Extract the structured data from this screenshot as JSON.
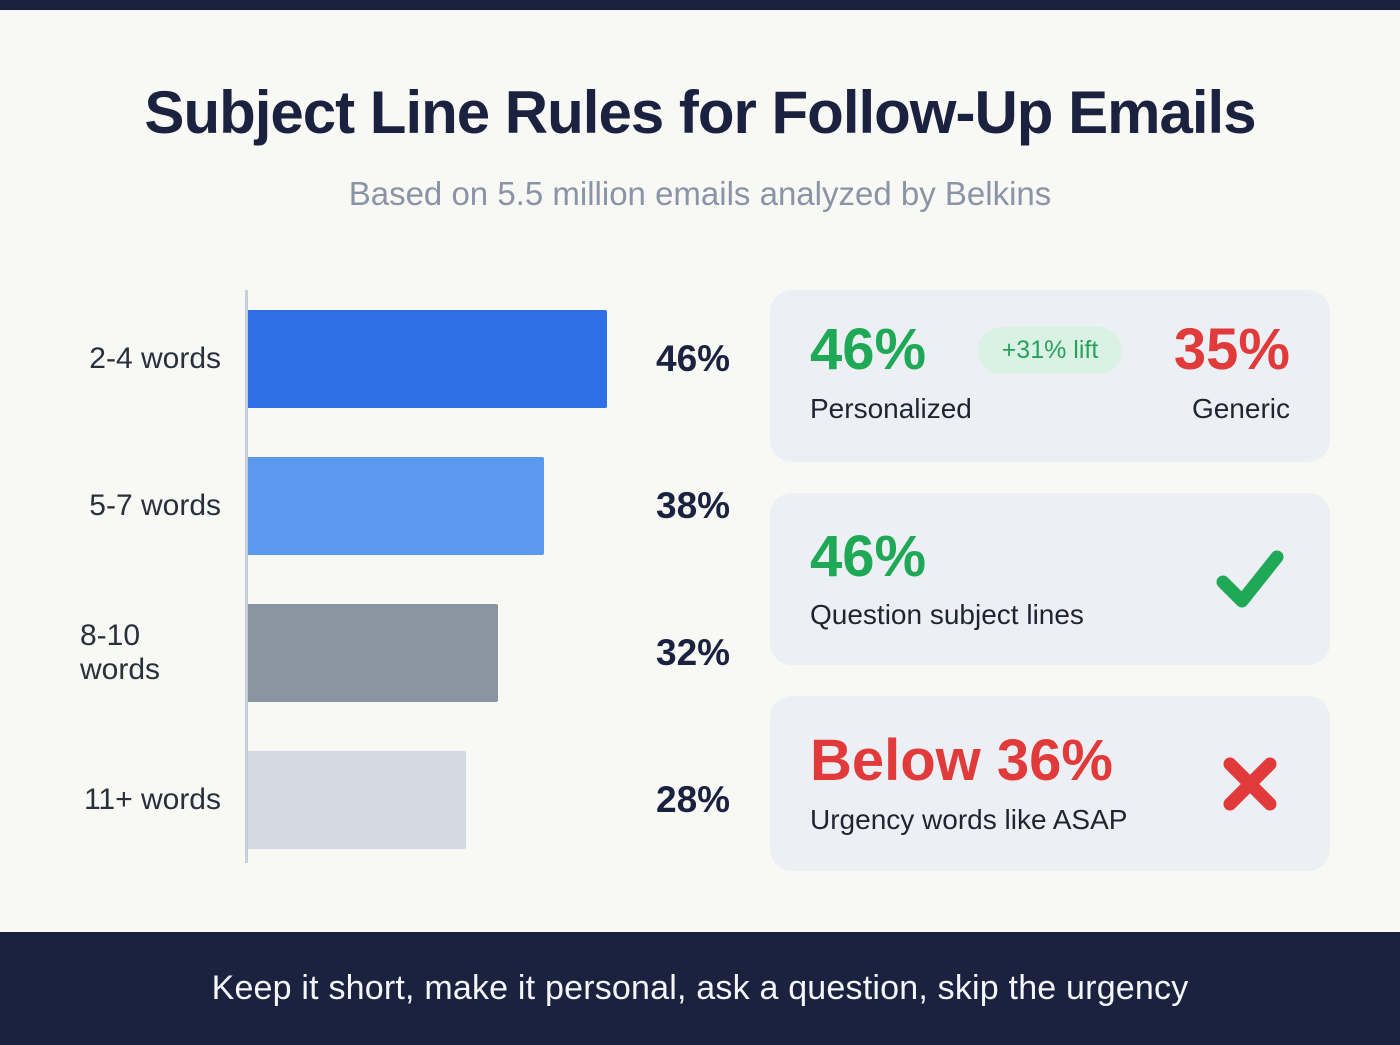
{
  "page": {
    "title": "Subject Line Rules for Follow-Up Emails",
    "subtitle": "Based on 5.5 million emails analyzed by Belkins",
    "footer_takeaway": "Keep it short, make it personal, ask a question, skip the urgency"
  },
  "chart_data": {
    "type": "bar",
    "orientation": "horizontal",
    "title": "Subject Line Rules for Follow-Up Emails",
    "categories": [
      "2-4 words",
      "5-7 words",
      "8-10 words",
      "11+ words"
    ],
    "values": [
      46,
      38,
      32,
      28
    ],
    "value_labels": [
      "46%",
      "38%",
      "32%",
      "28%"
    ],
    "xlim": [
      0,
      50
    ],
    "grid": false,
    "legend": "none",
    "bar_colors": [
      "#2e6fe6",
      "#5b99ee",
      "#8b95a2",
      "#d4dae2"
    ]
  },
  "cards": [
    {
      "left_stat": "46%",
      "left_label": "Personalized",
      "badge": "+31% lift",
      "right_stat": "35%",
      "right_label": "Generic"
    },
    {
      "stat": "46%",
      "label": "Question subject lines",
      "icon": "check-icon"
    },
    {
      "stat": "Below 36%",
      "label": "Urgency words like ASAP",
      "icon": "cross-icon"
    }
  ],
  "colors": {
    "title_navy": "#1b2240",
    "subtitle_gray": "#8b94a6",
    "background": "#f8f8f5",
    "card_bg": "#eceff4",
    "green": "#1fa855",
    "red": "#e13a3a",
    "badge_bg": "#daf2e4",
    "footer_bg": "#1a2240"
  }
}
